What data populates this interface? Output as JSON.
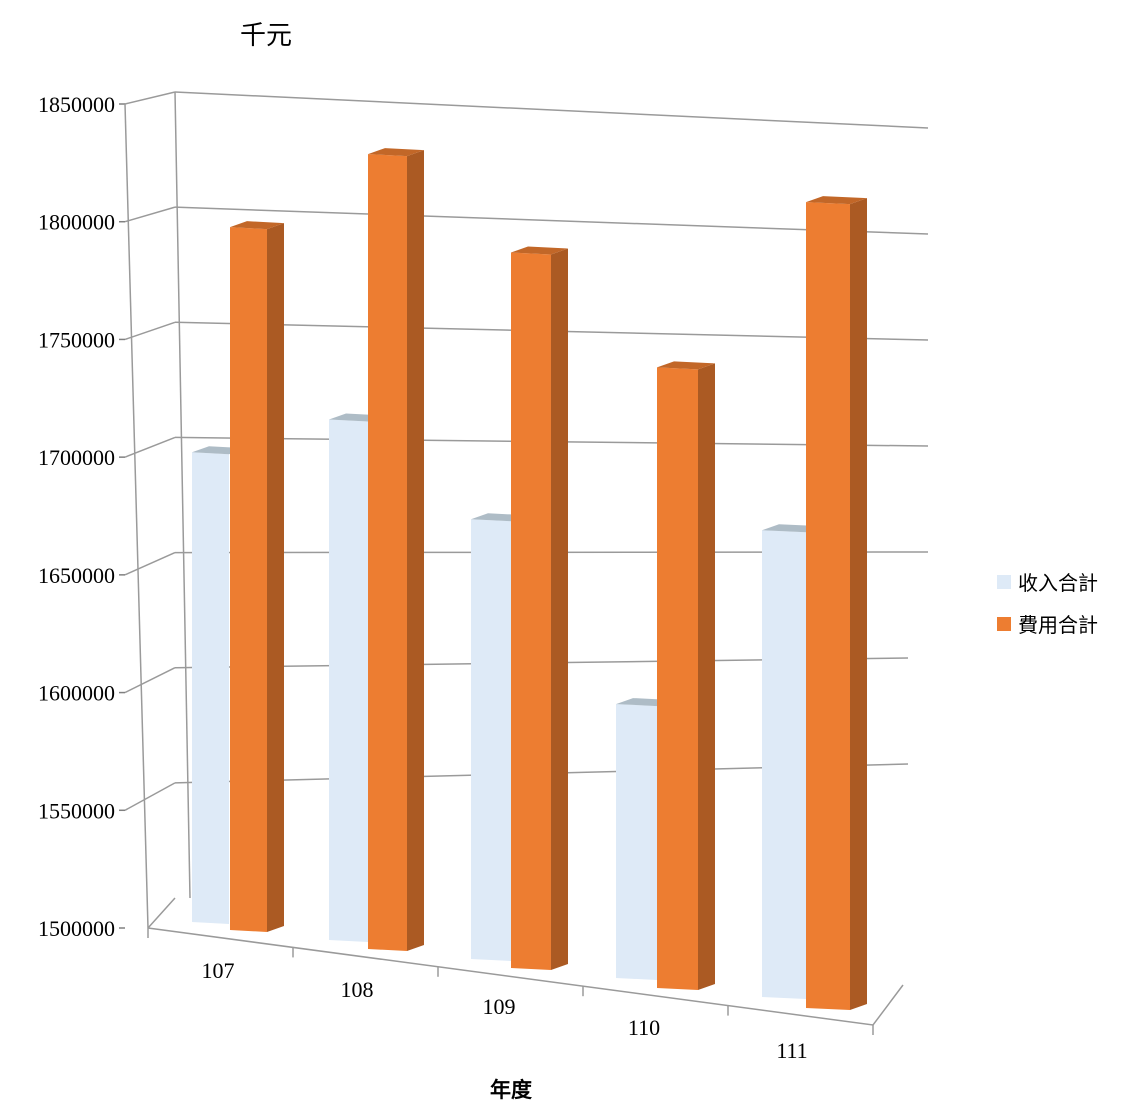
{
  "chart_data": {
    "type": "bar",
    "unit_label": "千元",
    "xlabel": "年度",
    "categories": [
      "107",
      "108",
      "109",
      "110",
      "111"
    ],
    "series": [
      {
        "name": "收入合計",
        "color": "#DEEAF7",
        "values": [
          1702000,
          1720000,
          1683000,
          1612000,
          1688000
        ]
      },
      {
        "name": "費用合計",
        "color": "#ED7D31",
        "values": [
          1800000,
          1834000,
          1796000,
          1752000,
          1822000
        ]
      }
    ],
    "ylim": [
      1500000,
      1850000
    ],
    "yticks": [
      "1500000",
      "1550000",
      "1600000",
      "1650000",
      "1700000",
      "1750000",
      "1800000",
      "1850000"
    ],
    "grid": true,
    "legend_position": "right",
    "projection": "3d-clustered-column"
  }
}
